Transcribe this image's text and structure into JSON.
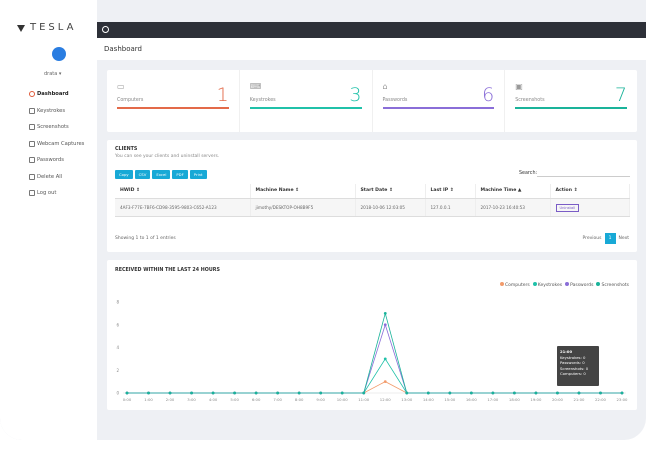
{
  "app": {
    "logo_text": "TESLA"
  },
  "user": {
    "name": "drata ▾"
  },
  "sidebar": {
    "items": [
      {
        "label": "Dashboard",
        "active": true
      },
      {
        "label": "Keystrokes"
      },
      {
        "label": "Screenshots"
      },
      {
        "label": "Webcam Captures"
      },
      {
        "label": "Passwords"
      },
      {
        "label": "Delete All"
      },
      {
        "label": "Log out"
      }
    ]
  },
  "page": {
    "title": "Dashboard"
  },
  "stats": [
    {
      "label": "Computers",
      "value": "1",
      "color": "#e36a49",
      "icon": "monitor-icon"
    },
    {
      "label": "Keystrokes",
      "value": "3",
      "color": "#20c1a9",
      "icon": "keyboard-icon"
    },
    {
      "label": "Passwords",
      "value": "6",
      "color": "#8a6ed8",
      "icon": "lock-icon"
    },
    {
      "label": "Screenshots",
      "value": "7",
      "color": "#1ab39a",
      "icon": "image-icon"
    }
  ],
  "clients": {
    "title": "CLIENTS",
    "subtitle": "You can see your clients and uninstall servers.",
    "buttons": [
      "Copy",
      "CSV",
      "Excel",
      "PDF",
      "Print"
    ],
    "search_label": "Search:",
    "columns": [
      "HWID ⇕",
      "Machine Name ⇕",
      "Start Date ⇕",
      "Last IP ⇕",
      "Machine Time ▲",
      "Action ⇕"
    ],
    "rows": [
      [
        "4AF3-F77E-7BF6-CD98-3595-9803-C652-A123",
        "jimothy/DESKTOP-OH8B9F5",
        "2018-10-06 12:03:05",
        "127.0.0.1",
        "2017-10-23 16:40:53",
        "Uninstall"
      ]
    ],
    "showing": "Showing 1 to 1 of 1 entries",
    "pager": {
      "previous": "Previous",
      "current": "1",
      "next": "Next"
    }
  },
  "chart_block": {
    "title": "RECEIVED WITHIN THE LAST 24 HOURS",
    "tooltip": {
      "time": "21:00",
      "lines": [
        "Keystrokes: 0",
        "Passwords: 0",
        "Screenshots: 0",
        "Computers: 0"
      ]
    }
  },
  "chart_data": {
    "type": "line",
    "title": "RECEIVED WITHIN THE LAST 24 HOURS",
    "x": [
      "0:00",
      "1:00",
      "2:00",
      "3:00",
      "4:00",
      "5:00",
      "6:00",
      "7:00",
      "8:00",
      "9:00",
      "10:00",
      "11:00",
      "12:00",
      "13:00",
      "14:00",
      "15:00",
      "16:00",
      "17:00",
      "18:00",
      "19:00",
      "20:00",
      "21:00",
      "22:00",
      "23:00"
    ],
    "ylim": [
      0,
      8
    ],
    "y_ticks": [
      0,
      2,
      4,
      6,
      8
    ],
    "series": [
      {
        "name": "Computers",
        "color": "#f29b6b",
        "values": [
          0,
          0,
          0,
          0,
          0,
          0,
          0,
          0,
          0,
          0,
          0,
          0,
          1,
          0,
          0,
          0,
          0,
          0,
          0,
          0,
          0,
          0,
          0,
          0
        ]
      },
      {
        "name": "Keystrokes",
        "color": "#20c1a9",
        "values": [
          0,
          0,
          0,
          0,
          0,
          0,
          0,
          0,
          0,
          0,
          0,
          0,
          3,
          0,
          0,
          0,
          0,
          0,
          0,
          0,
          0,
          0,
          0,
          0
        ]
      },
      {
        "name": "Passwords",
        "color": "#8a6ed8",
        "values": [
          0,
          0,
          0,
          0,
          0,
          0,
          0,
          0,
          0,
          0,
          0,
          0,
          6,
          0,
          0,
          0,
          0,
          0,
          0,
          0,
          0,
          0,
          0,
          0
        ]
      },
      {
        "name": "Screenshots",
        "color": "#1ab39a",
        "values": [
          0,
          0,
          0,
          0,
          0,
          0,
          0,
          0,
          0,
          0,
          0,
          0,
          7,
          0,
          0,
          0,
          0,
          0,
          0,
          0,
          0,
          0,
          0,
          0
        ]
      }
    ],
    "legend": "top-right",
    "grid": false
  }
}
